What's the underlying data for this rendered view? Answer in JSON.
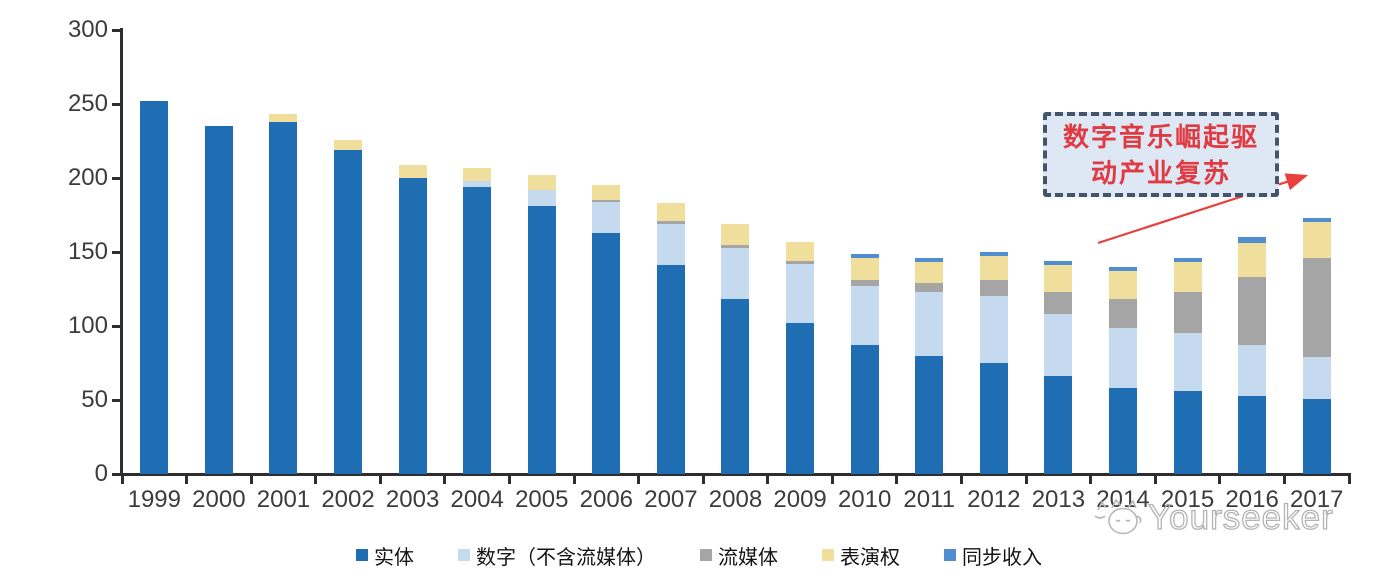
{
  "chart_data": {
    "type": "bar",
    "stacked": true,
    "title": "",
    "xlabel": "",
    "ylabel": "",
    "categories": [
      "1999",
      "2000",
      "2001",
      "2002",
      "2003",
      "2004",
      "2005",
      "2006",
      "2007",
      "2008",
      "2009",
      "2010",
      "2011",
      "2012",
      "2013",
      "2014",
      "2015",
      "2016",
      "2017"
    ],
    "series": [
      {
        "name": "实体",
        "color": "#1f6db3",
        "values": [
          252,
          235,
          238,
          219,
          200,
          194,
          181,
          163,
          141,
          118,
          102,
          87,
          80,
          75,
          66,
          58,
          56,
          53,
          51
        ]
      },
      {
        "name": "数字（不含流媒体）",
        "color": "#c5daee",
        "values": [
          0,
          0,
          0,
          0,
          0,
          4,
          11,
          21,
          28,
          35,
          40,
          40,
          43,
          45,
          42,
          41,
          39,
          34,
          28
        ]
      },
      {
        "name": "流媒体",
        "color": "#a5a5a5",
        "values": [
          0,
          0,
          0,
          0,
          0,
          0,
          0,
          1,
          2,
          2,
          2,
          4,
          6,
          11,
          15,
          19,
          28,
          46,
          67
        ]
      },
      {
        "name": "表演权",
        "color": "#efde9c",
        "values": [
          0,
          0,
          5,
          7,
          9,
          9,
          10,
          10,
          12,
          14,
          13,
          15,
          14,
          16,
          18,
          19,
          20,
          23,
          24
        ]
      },
      {
        "name": "同步收入",
        "color": "#4f8fd0",
        "values": [
          0,
          0,
          0,
          0,
          0,
          0,
          0,
          0,
          0,
          0,
          0,
          3,
          3,
          3,
          3,
          3,
          3,
          4,
          3
        ]
      }
    ],
    "ylim": [
      0,
      300
    ],
    "yticks": [
      0,
      50,
      100,
      150,
      200,
      250,
      300
    ],
    "grid": false,
    "legend_position": "bottom",
    "totals": [
      252,
      235,
      243,
      226,
      209,
      207,
      202,
      195,
      183,
      169,
      157,
      149,
      146,
      150,
      144,
      140,
      146,
      160,
      173
    ]
  },
  "annotation": {
    "text": "数字音乐崛起驱动产业复苏",
    "lines": [
      "数字音乐崛起驱",
      "动产业复苏"
    ],
    "text_color": "#e03a42",
    "border_color": "#44546a",
    "fill_color": "#dee8f5",
    "arrow_color": "#e8403c"
  },
  "watermark": {
    "text": "Yourseeker",
    "icon": "cat-logo",
    "color": "#b3b3b3"
  }
}
